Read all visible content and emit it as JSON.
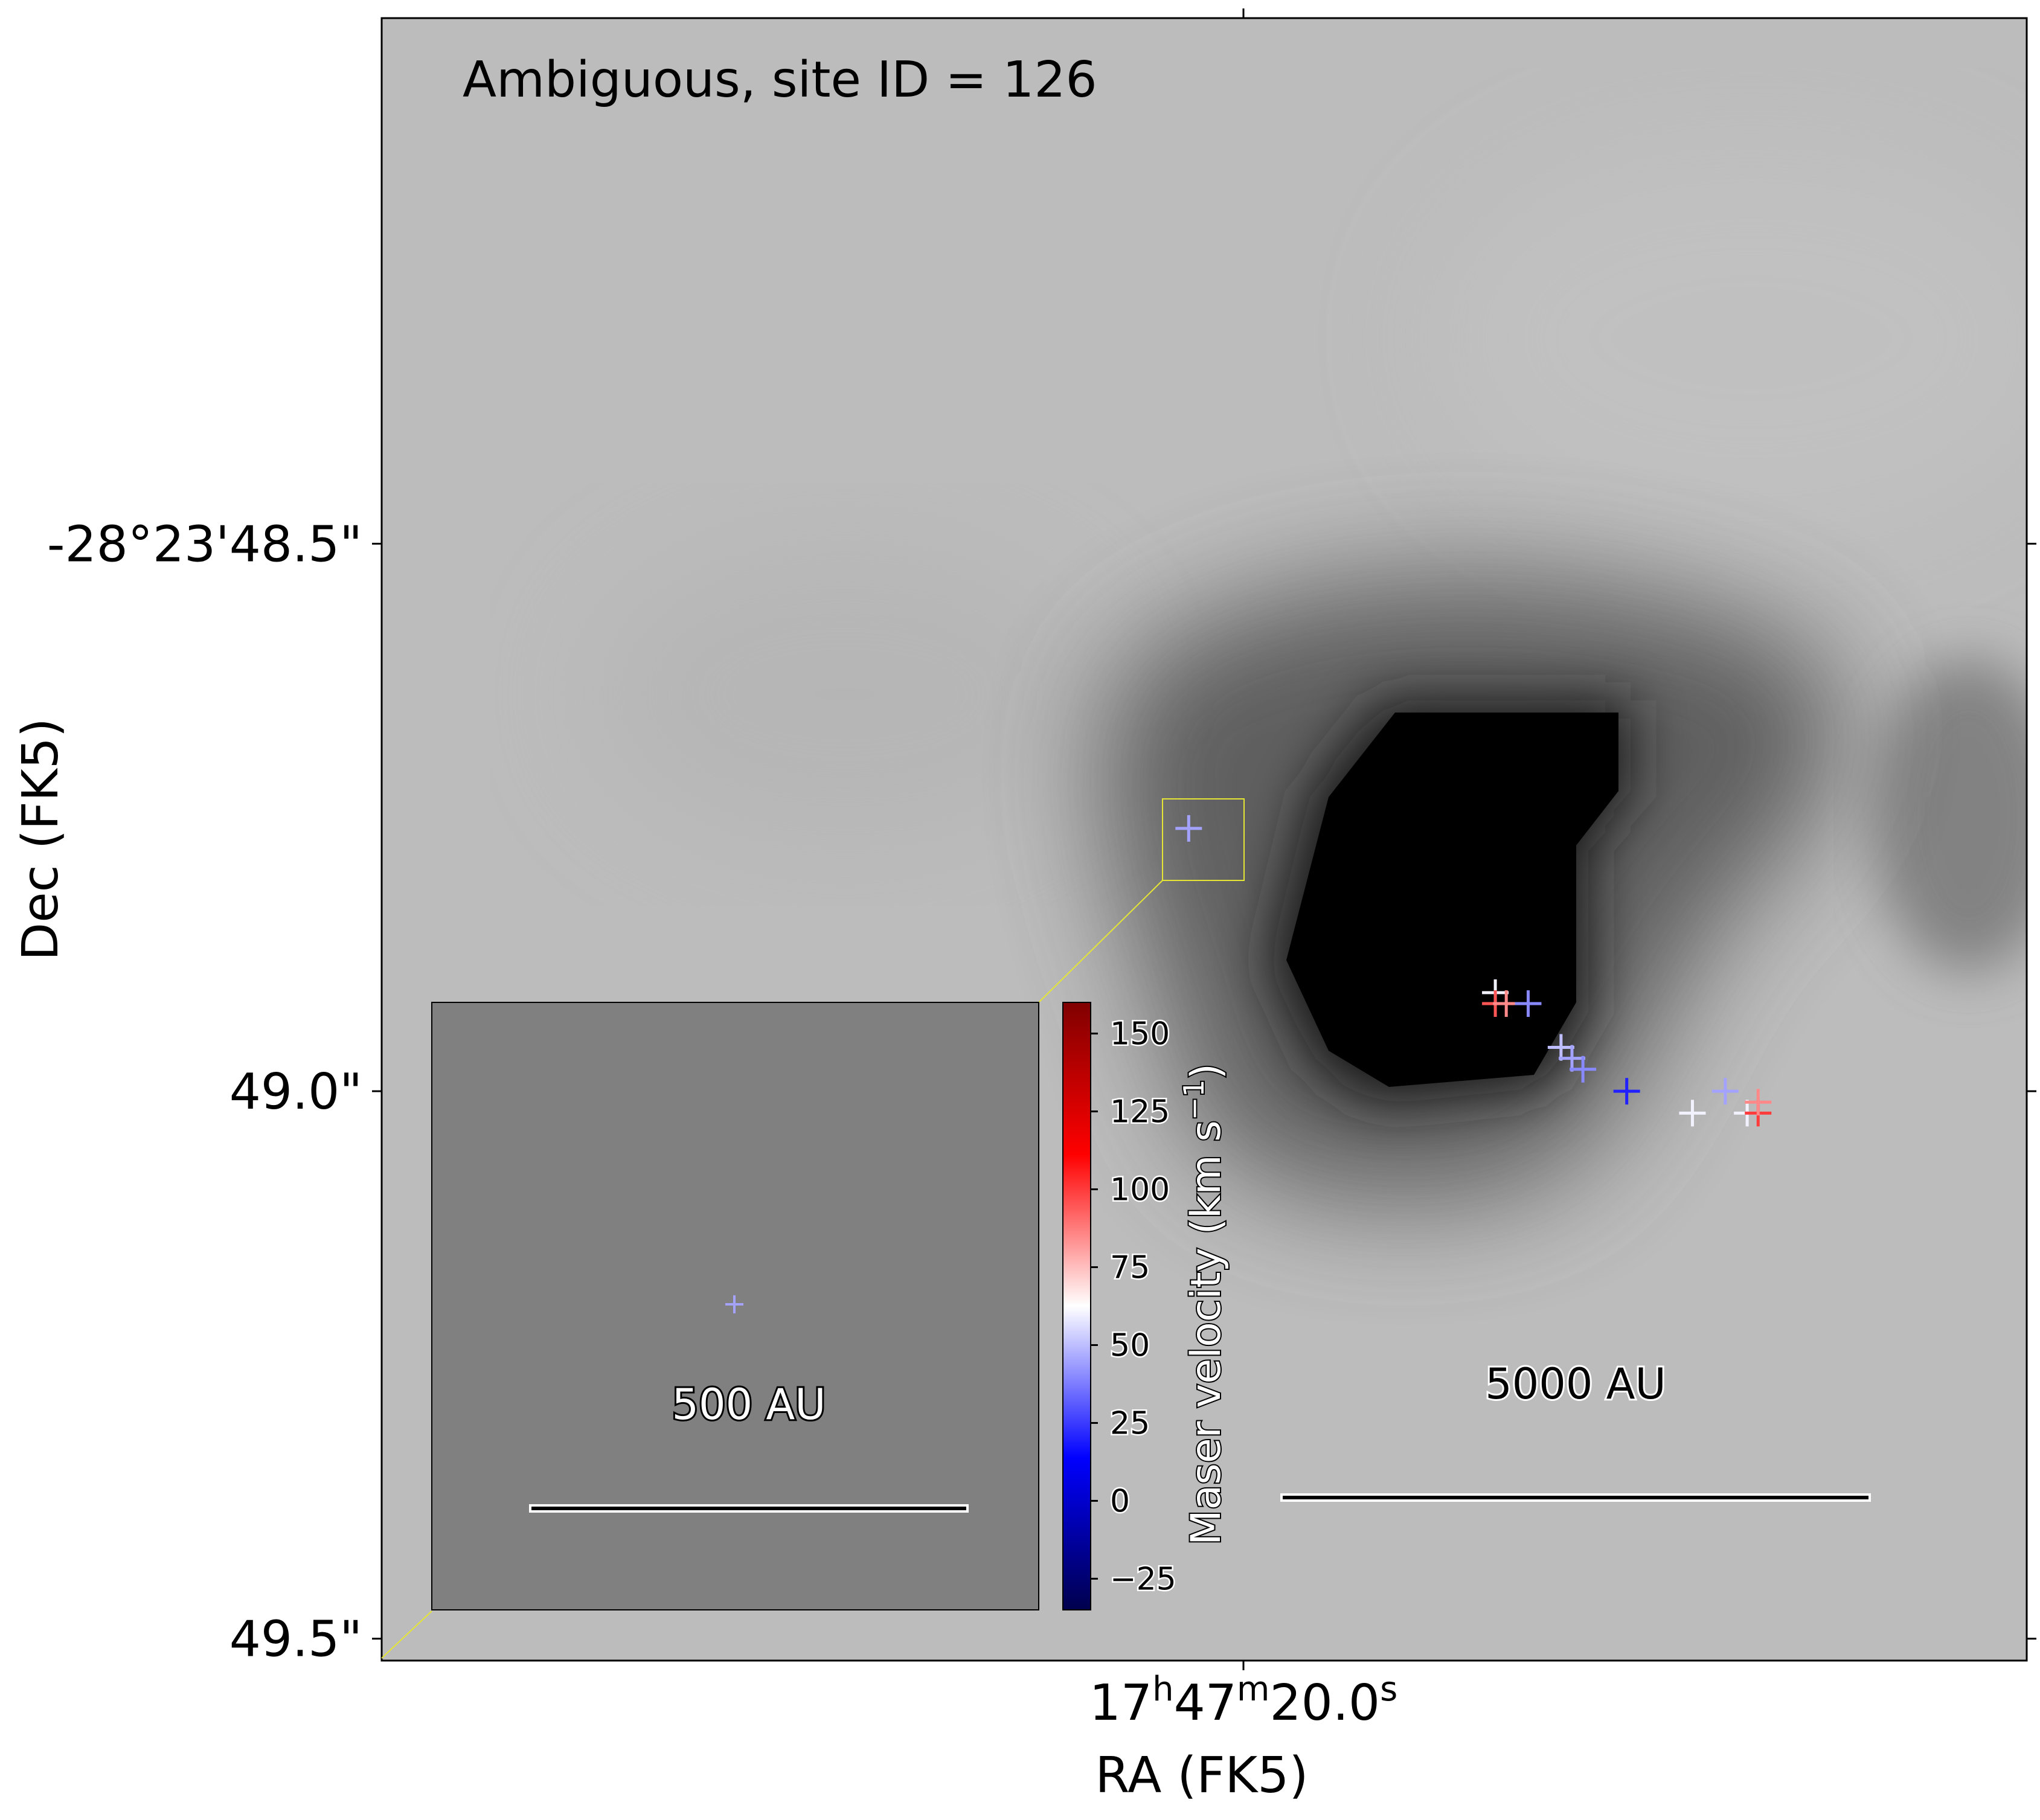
{
  "chart_data": {
    "type": "scatter",
    "title": "Ambiguous, site ID = 126",
    "xlabel": "RA (FK5)",
    "ylabel": "Dec (FK5)",
    "x_ticks": [
      {
        "h": "17",
        "m": "47",
        "s": "20.0"
      }
    ],
    "y_ticks": [
      {
        "label": "-28°23'48.5\"",
        "value": 48.5
      },
      {
        "label": "49.0\"",
        "value": 49.0
      },
      {
        "label": "49.5\"",
        "value": 49.5
      }
    ],
    "ylim_arcsec": [
      49.52,
      48.02
    ],
    "colorbar": {
      "label": "Maser velocity (km s",
      "label_sup": "−1",
      "label_end": ")",
      "colormap": "seismic",
      "range": [
        -35,
        160
      ],
      "ticks": [
        {
          "label": "150",
          "value": 150
        },
        {
          "label": "125",
          "value": 125
        },
        {
          "label": "100",
          "value": 100
        },
        {
          "label": "75",
          "value": 75
        },
        {
          "label": "50",
          "value": 50
        },
        {
          "label": "25",
          "value": 25
        },
        {
          "label": "0",
          "value": 0
        },
        {
          "label": "−25",
          "value": -25
        }
      ]
    },
    "series": [
      {
        "points": [
          {
            "dx": -0.05,
            "dec": 48.76,
            "v": 45
          },
          {
            "dx": 0.23,
            "dec": 48.91,
            "v": 60
          },
          {
            "dx": 0.23,
            "dec": 48.92,
            "v": 95
          },
          {
            "dx": 0.24,
            "dec": 48.92,
            "v": 85
          },
          {
            "dx": 0.26,
            "dec": 48.92,
            "v": 40
          },
          {
            "dx": 0.29,
            "dec": 48.96,
            "v": 50
          },
          {
            "dx": 0.3,
            "dec": 48.97,
            "v": 45
          },
          {
            "dx": 0.31,
            "dec": 48.98,
            "v": 40
          },
          {
            "dx": 0.35,
            "dec": 49.0,
            "v": 20
          },
          {
            "dx": 0.41,
            "dec": 49.02,
            "v": 60
          },
          {
            "dx": 0.44,
            "dec": 49.0,
            "v": 45
          },
          {
            "dx": 0.46,
            "dec": 49.02,
            "v": 60
          },
          {
            "dx": 0.47,
            "dec": 49.02,
            "v": 100
          },
          {
            "dx": 0.47,
            "dec": 49.01,
            "v": 85
          }
        ]
      }
    ],
    "scalebar_main": "5000 AU",
    "inset": {
      "scalebar": "500 AU",
      "points": [
        {
          "v": 45
        }
      ]
    },
    "colors": {
      "axes_frame": "#000000",
      "inset_box": "#e5e535",
      "inset_bg": "#808080"
    }
  }
}
